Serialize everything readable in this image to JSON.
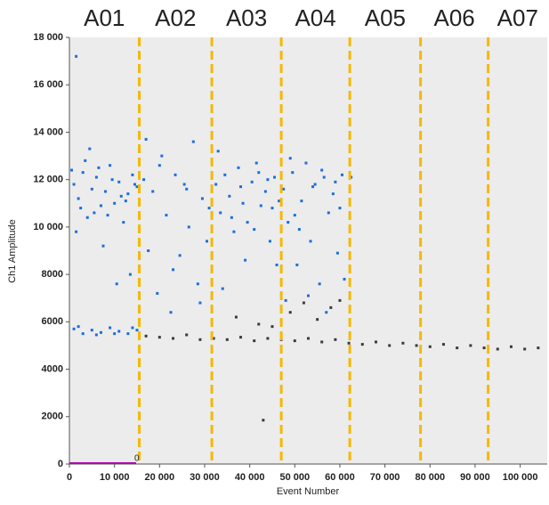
{
  "chart_data": {
    "type": "scatter",
    "x_label": "Event Number",
    "y_label": "Ch1 Amplitude",
    "xlim": [
      0,
      106000
    ],
    "ylim": [
      0,
      18000
    ],
    "xticks": [
      0,
      {
        "value": 10000,
        "label": "10 000"
      },
      {
        "value": 20000,
        "label": "20 000"
      },
      {
        "value": 30000,
        "label": "30 000"
      },
      {
        "value": 40000,
        "label": "40 000"
      },
      {
        "value": 50000,
        "label": "50 000"
      },
      {
        "value": 60000,
        "label": "60 000"
      },
      {
        "value": 70000,
        "label": "70 000"
      },
      {
        "value": 80000,
        "label": "80 000"
      },
      {
        "value": 90000,
        "label": "90 000"
      },
      {
        "value": 100000,
        "label": "100 000"
      }
    ],
    "yticks": [
      0,
      2000,
      4000,
      6000,
      8000,
      {
        "value": 10000,
        "label": "10 000"
      },
      {
        "value": 12000,
        "label": "12 000"
      },
      {
        "value": 14000,
        "label": "14 000"
      },
      {
        "value": 16000,
        "label": "16 000"
      },
      {
        "value": 18000,
        "label": "18 000"
      }
    ],
    "wells": [
      "A01",
      "A02",
      "A03",
      "A04",
      "A05",
      "A06",
      "A07"
    ],
    "well_boundaries": [
      15500,
      31600,
      47000,
      62200,
      77900,
      92900
    ],
    "boundary_color": "#f5b800",
    "annotation": "0",
    "annotation_x": 15000,
    "annotation_y": 0,
    "series": [
      {
        "color": "#1a6fd8",
        "x": [
          1000,
          2000,
          3000,
          4000,
          5000,
          6000,
          7000,
          8000,
          9000,
          10000,
          11000,
          12000,
          13000,
          14000,
          15000,
          1500,
          3500,
          5500,
          7500,
          9500,
          11500,
          13500,
          2500,
          6500,
          10500,
          12500,
          4500,
          8500,
          14500,
          500,
          1500,
          1000,
          3000,
          5000,
          7000,
          9000,
          11000,
          13000,
          15000,
          2000,
          6000,
          10000,
          14000
        ],
        "values": [
          11800,
          11200,
          12300,
          10400,
          11600,
          12100,
          10900,
          11500,
          12600,
          11000,
          11900,
          10200,
          11400,
          12200,
          11700,
          9800,
          12800,
          10600,
          9200,
          12000,
          11300,
          8000,
          10800,
          12500,
          7600,
          11100,
          13300,
          10500,
          11800,
          12400,
          17200,
          5700,
          5500,
          5650,
          5550,
          5750,
          5600,
          5500,
          5650,
          5800,
          5450,
          5500,
          5750
        ]
      },
      {
        "color": "#1a6fd8",
        "x": [
          16500,
          17500,
          18500,
          19500,
          20500,
          21500,
          22500,
          23500,
          24500,
          25500,
          26500,
          27500,
          28500,
          29500,
          30500,
          17000,
          20000,
          23000,
          26000,
          29000,
          31000
        ],
        "values": [
          12000,
          9000,
          11500,
          7200,
          13000,
          10500,
          6400,
          12200,
          8800,
          11800,
          10000,
          13600,
          7600,
          11200,
          9400,
          13700,
          12600,
          8200,
          11600,
          6800,
          10800
        ]
      },
      {
        "color": "#1a6fd8",
        "x": [
          32500,
          33500,
          34500,
          35500,
          36500,
          37500,
          38500,
          39500,
          40500,
          41500,
          42500,
          43500,
          44500,
          45500,
          46500,
          33000,
          36000,
          39000,
          42000,
          45000,
          34000,
          38000,
          41000,
          44000,
          46000
        ],
        "values": [
          11800,
          10600,
          12200,
          11300,
          9800,
          12500,
          11000,
          10200,
          11900,
          12700,
          10900,
          11500,
          9400,
          12100,
          11100,
          13200,
          10400,
          8600,
          12300,
          10800,
          7400,
          11700,
          9900,
          12000,
          8400
        ]
      },
      {
        "color": "#1a6fd8",
        "x": [
          47500,
          48500,
          49500,
          50500,
          51500,
          52500,
          53500,
          54500,
          55500,
          56500,
          57500,
          58500,
          59500,
          60500,
          48000,
          51000,
          54000,
          57000,
          60000,
          49000,
          53000,
          56000,
          59000,
          61000,
          50000,
          62500
        ],
        "values": [
          11600,
          10200,
          12300,
          8400,
          11100,
          12700,
          9400,
          11800,
          7600,
          12100,
          10600,
          11400,
          8900,
          12200,
          6900,
          9900,
          11700,
          6400,
          10800,
          12900,
          7100,
          12400,
          11900,
          7800,
          10500,
          12100
        ]
      },
      {
        "color": "#3a3a3a",
        "x": [
          17000,
          20000,
          23000,
          26000,
          29000,
          32000,
          35000,
          38000,
          41000,
          44000,
          47000,
          50000,
          53000,
          56000,
          59000,
          62000,
          65000,
          68000,
          71000,
          74000,
          77000,
          80000,
          83000,
          86000,
          89000,
          92000,
          95000,
          98000,
          101000,
          104000,
          37000,
          42000,
          49000,
          52000,
          55000,
          58000,
          60000,
          45000,
          43000
        ],
        "values": [
          5400,
          5350,
          5300,
          5450,
          5250,
          5300,
          5250,
          5350,
          5200,
          5300,
          5250,
          5200,
          5300,
          5150,
          5250,
          5100,
          5050,
          5150,
          5000,
          5100,
          5000,
          4950,
          5050,
          4900,
          5000,
          4900,
          4850,
          4950,
          4850,
          4900,
          6200,
          5900,
          6400,
          6800,
          6100,
          6600,
          6900,
          5800,
          1850
        ]
      }
    ]
  }
}
